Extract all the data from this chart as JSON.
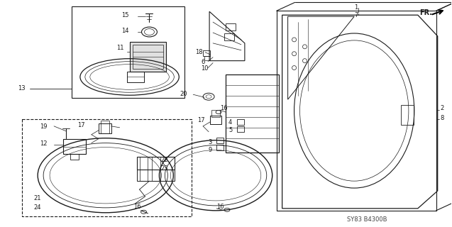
{
  "background_color": "#ffffff",
  "diagram_color": "#1a1a1a",
  "fig_width": 6.37,
  "fig_height": 3.2,
  "dpi": 100,
  "diagram_id": "SY83 B4300B",
  "fr_label": "FR.",
  "gray_fill": "#c8c8c8",
  "light_gray": "#e0e0e0"
}
